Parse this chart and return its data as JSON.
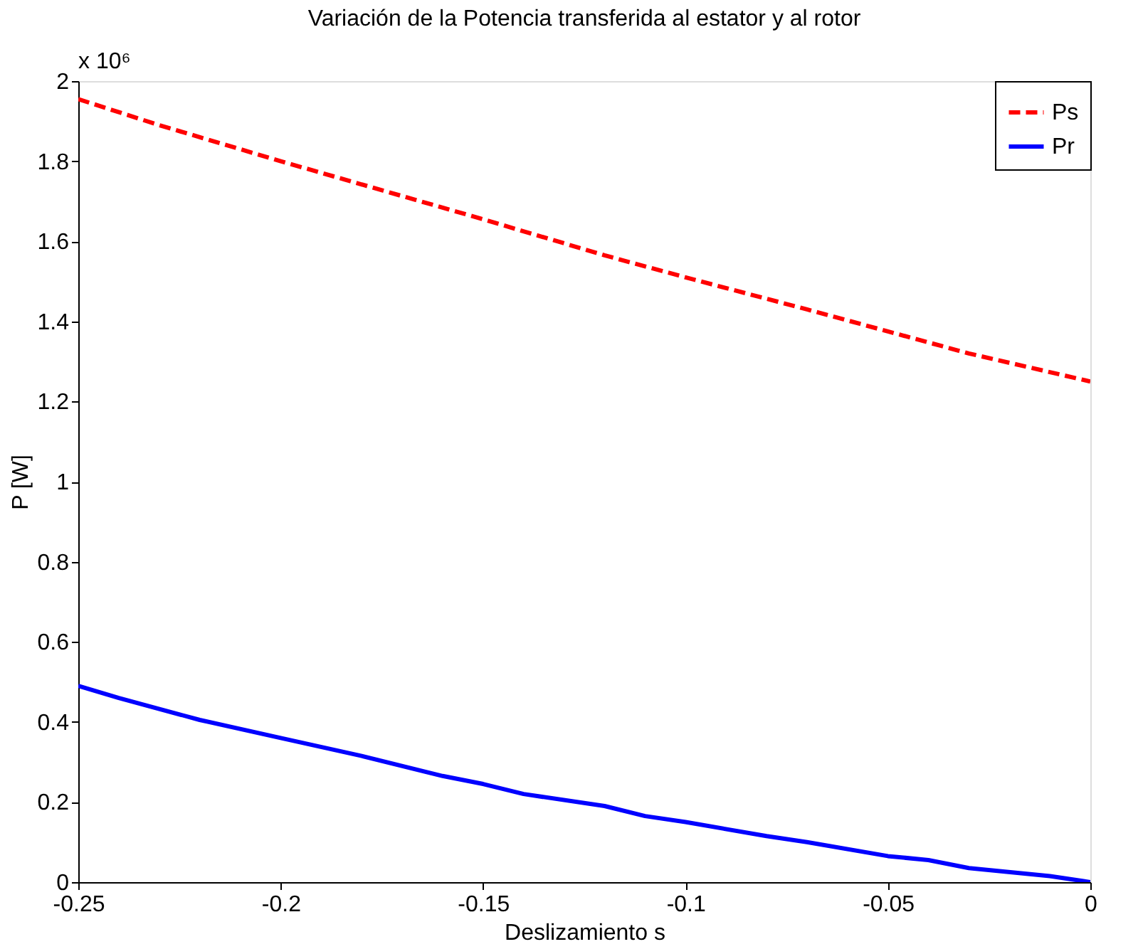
{
  "chart_data": {
    "type": "line",
    "title": "Variación de la Potencia transferida al estator y al rotor",
    "xlabel": "Deslizamiento s",
    "ylabel": "P [W]",
    "annotations": [
      "x 10⁶"
    ],
    "xlim": [
      -0.25,
      0
    ],
    "xticks": [
      -0.25,
      -0.2,
      -0.15,
      -0.1,
      -0.05,
      0
    ],
    "ylim": [
      0,
      2
    ],
    "yticks": [
      0,
      0.2,
      0.4,
      0.6,
      0.8,
      1,
      1.2,
      1.4,
      1.6,
      1.8,
      2
    ],
    "grid": false,
    "legend": "top right",
    "marker": "none",
    "series": [
      {
        "name": "Ps",
        "color": "#ff0000",
        "line_style": "dashed",
        "x": [
          -0.25,
          -0.23,
          -0.2,
          -0.15,
          -0.12,
          -0.1,
          -0.07,
          -0.05,
          -0.03,
          0
        ],
        "values": [
          1.955,
          1.89,
          1.8,
          1.655,
          1.565,
          1.51,
          1.43,
          1.375,
          1.32,
          1.25
        ]
      },
      {
        "name": "Pr",
        "color": "#0000ff",
        "line_style": "solid",
        "x": [
          -0.25,
          -0.24,
          -0.22,
          -0.2,
          -0.18,
          -0.16,
          -0.15,
          -0.14,
          -0.12,
          -0.11,
          -0.1,
          -0.08,
          -0.07,
          -0.05,
          -0.04,
          -0.03,
          -0.01,
          0
        ],
        "values": [
          0.49,
          0.46,
          0.405,
          0.36,
          0.315,
          0.265,
          0.245,
          0.22,
          0.19,
          0.165,
          0.15,
          0.115,
          0.1,
          0.065,
          0.055,
          0.035,
          0.015,
          0
        ]
      }
    ]
  }
}
